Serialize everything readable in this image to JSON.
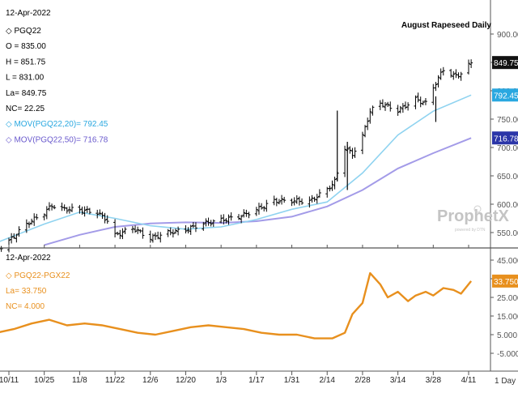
{
  "upper_panel": {
    "date": "12-Apr-2022",
    "title": "August Rapeseed Daily",
    "info_lines": [
      {
        "text": "PGQ22",
        "symbol": "◇",
        "color": "#000000"
      },
      {
        "text": "O = 835.00",
        "color": "#000000"
      },
      {
        "text": "H = 851.75",
        "color": "#000000"
      },
      {
        "text": "L = 831.00",
        "color": "#000000"
      },
      {
        "text": "La= 849.75",
        "color": "#000000"
      },
      {
        "text": "NC= 22.25",
        "color": "#000000"
      },
      {
        "text": "MOV(PGQ22,20)= 792.45",
        "symbol": "◇",
        "color": "#2aa8e0"
      },
      {
        "text": "MOV(PGQ22,50)= 716.78",
        "symbol": "◇",
        "color": "#6a5acd"
      }
    ],
    "watermark": "ProphetX",
    "watermark_sub": "powered by DTN"
  },
  "lower_panel": {
    "date": "12-Apr-2022",
    "info_lines": [
      {
        "text": "PGQ22-PGX22",
        "symbol": "◇",
        "color": "#e8901e"
      },
      {
        "text": "La= 33.750",
        "color": "#e8901e"
      },
      {
        "text": "NC= 4.000",
        "color": "#e8901e"
      }
    ]
  },
  "footer": {
    "interval": "1 Day"
  },
  "colors": {
    "price": "#000000",
    "ma20": "#8fd3f0",
    "ma50": "#a39be8",
    "spread": "#e8901e",
    "badge_ma20": "#2aa8e0",
    "badge_ma50": "#2b35a8"
  },
  "chart_data": [
    {
      "type": "ohlc",
      "title": "August Rapeseed Daily",
      "ylim": [
        500,
        950
      ],
      "y_ticks": [
        550,
        600,
        650,
        700,
        750,
        800,
        850,
        900
      ],
      "y_tick_labels": [
        "550.00",
        "600.00",
        "650.00",
        "700.00",
        "750.00",
        "800.00",
        "850.00",
        "900.00"
      ],
      "x_labels": [
        "10/11",
        "10/25",
        "11/8",
        "11/22",
        "12/6",
        "12/20",
        "1/3",
        "1/17",
        "1/31",
        "2/14",
        "2/28",
        "3/14",
        "3/28",
        "4/11"
      ],
      "x_label_dates": [
        "2021-10-11",
        "2021-10-25",
        "2021-11-08",
        "2021-11-22",
        "2021-12-06",
        "2021-12-20",
        "2022-01-03",
        "2022-01-17",
        "2022-01-31",
        "2022-02-14",
        "2022-02-28",
        "2022-03-14",
        "2022-03-28",
        "2022-04-11"
      ],
      "price_path": [
        [
          "2021-10-06",
          518
        ],
        [
          "2021-10-11",
          535
        ],
        [
          "2021-10-18",
          565
        ],
        [
          "2021-10-25",
          585
        ],
        [
          "2021-10-28",
          598
        ],
        [
          "2021-11-01",
          592
        ],
        [
          "2021-11-08",
          590
        ],
        [
          "2021-11-15",
          585
        ],
        [
          "2021-11-20",
          568
        ],
        [
          "2021-11-22",
          545
        ],
        [
          "2021-11-29",
          558
        ],
        [
          "2021-12-06",
          540
        ],
        [
          "2021-12-13",
          550
        ],
        [
          "2021-12-20",
          555
        ],
        [
          "2021-12-27",
          566
        ],
        [
          "2022-01-03",
          572
        ],
        [
          "2022-01-10",
          578
        ],
        [
          "2022-01-17",
          590
        ],
        [
          "2022-01-24",
          606
        ],
        [
          "2022-01-31",
          606
        ],
        [
          "2022-02-07",
          605
        ],
        [
          "2022-02-14",
          626
        ],
        [
          "2022-02-17",
          640
        ],
        [
          "2022-02-21",
          700
        ],
        [
          "2022-02-24",
          688
        ],
        [
          "2022-02-28",
          720
        ],
        [
          "2022-03-03",
          764
        ],
        [
          "2022-03-07",
          778
        ],
        [
          "2022-03-14",
          765
        ],
        [
          "2022-03-21",
          785
        ],
        [
          "2022-03-26",
          776
        ],
        [
          "2022-03-28",
          806
        ],
        [
          "2022-04-01",
          838
        ],
        [
          "2022-04-05",
          826
        ],
        [
          "2022-04-08",
          830
        ],
        [
          "2022-04-12",
          849.75
        ]
      ],
      "ma20_path": [
        [
          "2021-10-06",
          532
        ],
        [
          "2021-10-25",
          565
        ],
        [
          "2021-11-08",
          586
        ],
        [
          "2021-11-22",
          575
        ],
        [
          "2021-12-06",
          562
        ],
        [
          "2021-12-20",
          556
        ],
        [
          "2022-01-03",
          560
        ],
        [
          "2022-01-17",
          573
        ],
        [
          "2022-01-31",
          591
        ],
        [
          "2022-02-14",
          604
        ],
        [
          "2022-02-28",
          655
        ],
        [
          "2022-03-14",
          722
        ],
        [
          "2022-03-28",
          764
        ],
        [
          "2022-04-12",
          792.45
        ]
      ],
      "ma50_path": [
        [
          "2021-10-25",
          528
        ],
        [
          "2021-11-08",
          546
        ],
        [
          "2021-11-22",
          560
        ],
        [
          "2021-12-06",
          566
        ],
        [
          "2021-12-20",
          568
        ],
        [
          "2022-01-03",
          567
        ],
        [
          "2022-01-17",
          570
        ],
        [
          "2022-01-31",
          578
        ],
        [
          "2022-02-14",
          596
        ],
        [
          "2022-02-28",
          625
        ],
        [
          "2022-03-14",
          663
        ],
        [
          "2022-03-28",
          690
        ],
        [
          "2022-04-12",
          716.78
        ]
      ],
      "last": {
        "PGQ22": "849.75",
        "MOV20": "792.45",
        "MOV50": "716.78"
      }
    },
    {
      "type": "line",
      "series": [
        {
          "name": "PGQ22-PGX22"
        }
      ],
      "ylim": [
        -12,
        50
      ],
      "y_ticks": [
        -5,
        5,
        15,
        25,
        35,
        45
      ],
      "y_tick_labels": [
        "-5.000",
        "5.000",
        "15.000",
        "25.000",
        "35.000",
        "45.000"
      ],
      "spread_path": [
        [
          "2021-10-06",
          6
        ],
        [
          "2021-10-13",
          8
        ],
        [
          "2021-10-20",
          11
        ],
        [
          "2021-10-27",
          13
        ],
        [
          "2021-11-03",
          10
        ],
        [
          "2021-11-10",
          11
        ],
        [
          "2021-11-17",
          10
        ],
        [
          "2021-11-24",
          8
        ],
        [
          "2021-12-01",
          6
        ],
        [
          "2021-12-08",
          5
        ],
        [
          "2021-12-15",
          7
        ],
        [
          "2021-12-22",
          9
        ],
        [
          "2021-12-29",
          10
        ],
        [
          "2022-01-05",
          9
        ],
        [
          "2022-01-12",
          8
        ],
        [
          "2022-01-19",
          6
        ],
        [
          "2022-01-26",
          5
        ],
        [
          "2022-02-02",
          5
        ],
        [
          "2022-02-09",
          3
        ],
        [
          "2022-02-16",
          3
        ],
        [
          "2022-02-21",
          6
        ],
        [
          "2022-02-24",
          16
        ],
        [
          "2022-02-28",
          22
        ],
        [
          "2022-03-03",
          38
        ],
        [
          "2022-03-07",
          32
        ],
        [
          "2022-03-10",
          25
        ],
        [
          "2022-03-14",
          28
        ],
        [
          "2022-03-18",
          23
        ],
        [
          "2022-03-21",
          26
        ],
        [
          "2022-03-25",
          28
        ],
        [
          "2022-03-28",
          26
        ],
        [
          "2022-04-01",
          30
        ],
        [
          "2022-04-05",
          29
        ],
        [
          "2022-04-08",
          27
        ],
        [
          "2022-04-12",
          33.75
        ]
      ],
      "last": "33.750"
    }
  ]
}
